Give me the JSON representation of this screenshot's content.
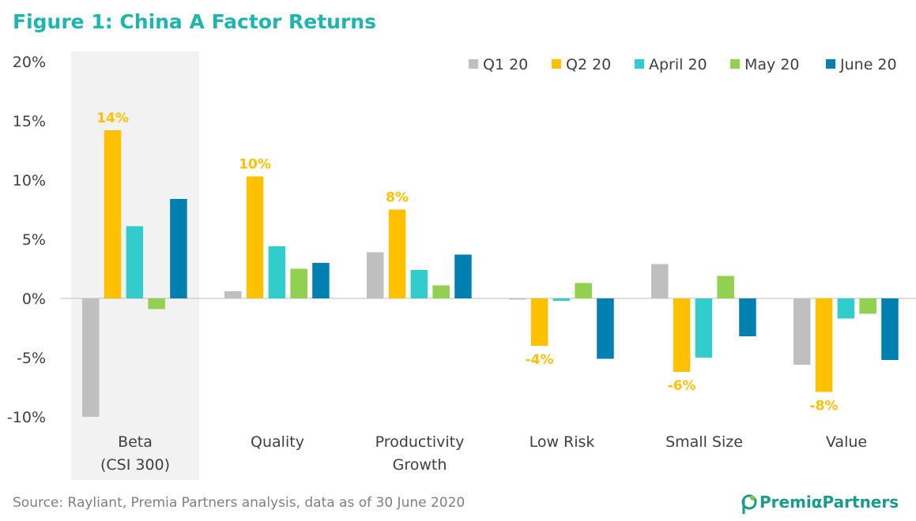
{
  "chart_data": {
    "type": "bar",
    "title": "Figure 1: China A Factor Returns",
    "categories": [
      [
        "Beta",
        "(CSI 300)"
      ],
      [
        "Quality"
      ],
      [
        "Productivity",
        "Growth"
      ],
      [
        "Low Risk"
      ],
      [
        "Small Size"
      ],
      [
        "Value"
      ]
    ],
    "series": [
      {
        "name": "Q1 20",
        "color": "#bfbfbf",
        "values": [
          -10.0,
          0.6,
          3.9,
          -0.1,
          2.9,
          -5.6
        ]
      },
      {
        "name": "Q2 20",
        "color": "#ffc000",
        "values": [
          14.2,
          10.3,
          7.5,
          -4.0,
          -6.2,
          -7.9
        ]
      },
      {
        "name": "April 20",
        "color": "#33cccc",
        "values": [
          6.1,
          4.4,
          2.4,
          -0.2,
          -5.0,
          -1.7
        ]
      },
      {
        "name": "May 20",
        "color": "#92d050",
        "values": [
          -0.9,
          2.5,
          1.1,
          1.3,
          1.9,
          -1.3
        ]
      },
      {
        "name": "June 20",
        "color": "#0080b0",
        "values": [
          8.4,
          3.0,
          3.7,
          -5.1,
          -3.2,
          -5.2
        ]
      }
    ],
    "data_labels": [
      {
        "series": 1,
        "category": 0,
        "text": "14%"
      },
      {
        "series": 1,
        "category": 1,
        "text": "10%"
      },
      {
        "series": 1,
        "category": 2,
        "text": "8%"
      },
      {
        "series": 1,
        "category": 3,
        "text": "-4%"
      },
      {
        "series": 1,
        "category": 4,
        "text": "-6%"
      },
      {
        "series": 1,
        "category": 5,
        "text": "-8%"
      }
    ],
    "y_ticks": [
      "20%",
      "15%",
      "10%",
      "5%",
      "0%",
      "-5%",
      "-10%"
    ],
    "y_tick_values": [
      20,
      15,
      10,
      5,
      0,
      -5,
      -10
    ],
    "ylim": [
      -10,
      20
    ],
    "highlighted_category": 0,
    "legend_position": "top-right",
    "grid": false
  },
  "footer": {
    "source": "Source: Rayliant, Premia Partners analysis, data as of 30 June 2020",
    "brand": "PremiαPartners"
  },
  "colors": {
    "title": "#1fb5ac",
    "highlight_band": "#f2f2f2",
    "text": "#404040",
    "zero_line": "#bfbfbf",
    "data_label": "#ffc000",
    "brand": "#1a9a8a"
  }
}
